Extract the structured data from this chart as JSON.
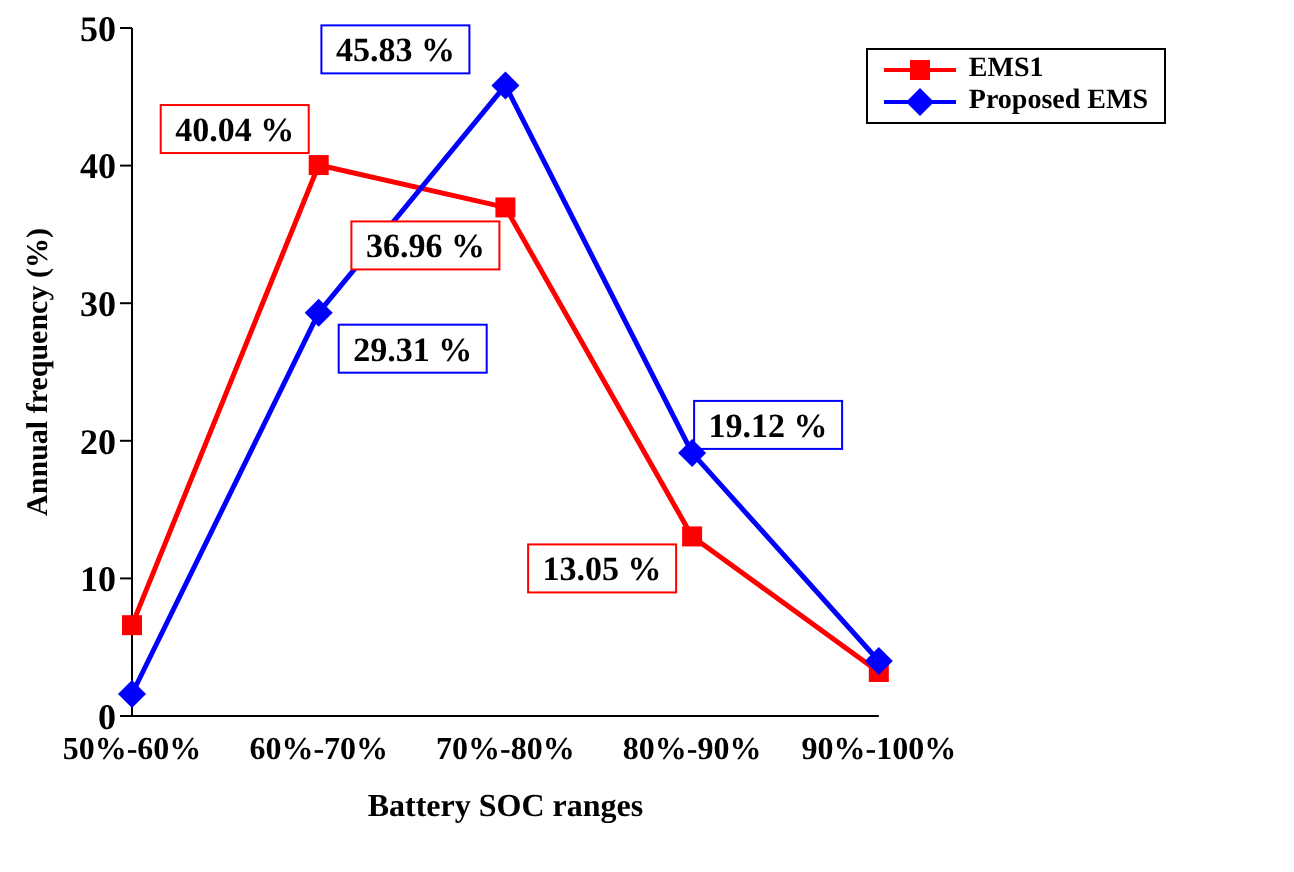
{
  "chart_data": {
    "type": "line",
    "xlabel": "Battery SOC ranges",
    "ylabel": "Annual frequency (%)",
    "categories": [
      "50%-60%",
      "60%-70%",
      "70%-80%",
      "80%-90%",
      "90%-100%"
    ],
    "series": [
      {
        "name": "EMS1",
        "color": "#ff0000",
        "marker": "square",
        "values": [
          6.6,
          40.04,
          36.96,
          13.05,
          3.2
        ]
      },
      {
        "name": "Proposed EMS",
        "color": "#0000ff",
        "marker": "diamond",
        "values": [
          1.6,
          29.31,
          45.83,
          19.12,
          4.0
        ]
      }
    ],
    "annotations": [
      {
        "text": "40.04 %",
        "x": "60%-70%",
        "y": 40.04
      },
      {
        "text": "36.96 %",
        "x": "70%-80%",
        "y": 36.96
      },
      {
        "text": "45.83 %",
        "x": "70%-80%",
        "y": 45.83
      },
      {
        "text": "29.31 %",
        "x": "60%-70%",
        "y": 29.31
      },
      {
        "text": "19.12 %",
        "x": "80%-90%",
        "y": 19.12
      },
      {
        "text": "13.05 %",
        "x": "80%-90%",
        "y": 13.05
      }
    ],
    "ylim": [
      0,
      50
    ],
    "yticks": [
      0,
      10,
      20,
      30,
      40,
      50
    ],
    "grid": false,
    "legend": "top right"
  }
}
